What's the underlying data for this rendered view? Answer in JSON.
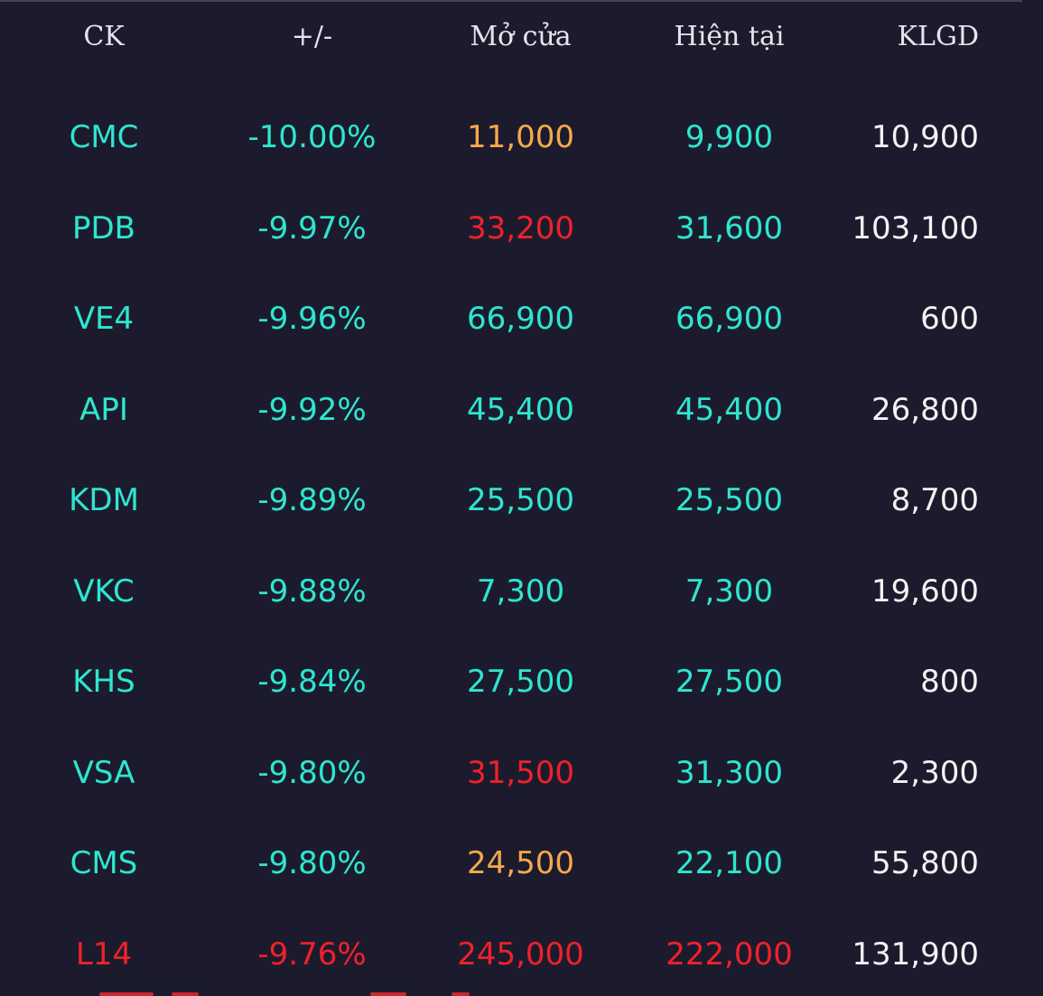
{
  "colors": {
    "background": "#1c1b2e",
    "cyan": "#2ee6d0",
    "red": "#f0212a",
    "orange": "#f6a94a",
    "white": "#f2f2f2",
    "header_text": "#e4e4ea"
  },
  "header": {
    "symbol": "CK",
    "change": "+/-",
    "open": "Mở cửa",
    "current": "Hiện tại",
    "volume": "KLGD"
  },
  "rows": [
    {
      "symbol": "CMC",
      "change": "-10.00%",
      "open": "11,000",
      "current": "9,900",
      "volume": "10,900",
      "symbol_color": "cyan",
      "change_color": "cyan",
      "open_color": "orange",
      "current_color": "cyan"
    },
    {
      "symbol": "PDB",
      "change": "-9.97%",
      "open": "33,200",
      "current": "31,600",
      "volume": "103,100",
      "symbol_color": "cyan",
      "change_color": "cyan",
      "open_color": "red",
      "current_color": "cyan"
    },
    {
      "symbol": "VE4",
      "change": "-9.96%",
      "open": "66,900",
      "current": "66,900",
      "volume": "600",
      "symbol_color": "cyan",
      "change_color": "cyan",
      "open_color": "cyan",
      "current_color": "cyan"
    },
    {
      "symbol": "API",
      "change": "-9.92%",
      "open": "45,400",
      "current": "45,400",
      "volume": "26,800",
      "symbol_color": "cyan",
      "change_color": "cyan",
      "open_color": "cyan",
      "current_color": "cyan"
    },
    {
      "symbol": "KDM",
      "change": "-9.89%",
      "open": "25,500",
      "current": "25,500",
      "volume": "8,700",
      "symbol_color": "cyan",
      "change_color": "cyan",
      "open_color": "cyan",
      "current_color": "cyan"
    },
    {
      "symbol": "VKC",
      "change": "-9.88%",
      "open": "7,300",
      "current": "7,300",
      "volume": "19,600",
      "symbol_color": "cyan",
      "change_color": "cyan",
      "open_color": "cyan",
      "current_color": "cyan"
    },
    {
      "symbol": "KHS",
      "change": "-9.84%",
      "open": "27,500",
      "current": "27,500",
      "volume": "800",
      "symbol_color": "cyan",
      "change_color": "cyan",
      "open_color": "cyan",
      "current_color": "cyan"
    },
    {
      "symbol": "VSA",
      "change": "-9.80%",
      "open": "31,500",
      "current": "31,300",
      "volume": "2,300",
      "symbol_color": "cyan",
      "change_color": "cyan",
      "open_color": "red",
      "current_color": "cyan"
    },
    {
      "symbol": "CMS",
      "change": "-9.80%",
      "open": "24,500",
      "current": "22,100",
      "volume": "55,800",
      "symbol_color": "cyan",
      "change_color": "cyan",
      "open_color": "orange",
      "current_color": "cyan"
    },
    {
      "symbol": "L14",
      "change": "-9.76%",
      "open": "245,000",
      "current": "222,000",
      "volume": "131,900",
      "symbol_color": "red",
      "change_color": "red",
      "open_color": "red",
      "current_color": "red"
    }
  ]
}
